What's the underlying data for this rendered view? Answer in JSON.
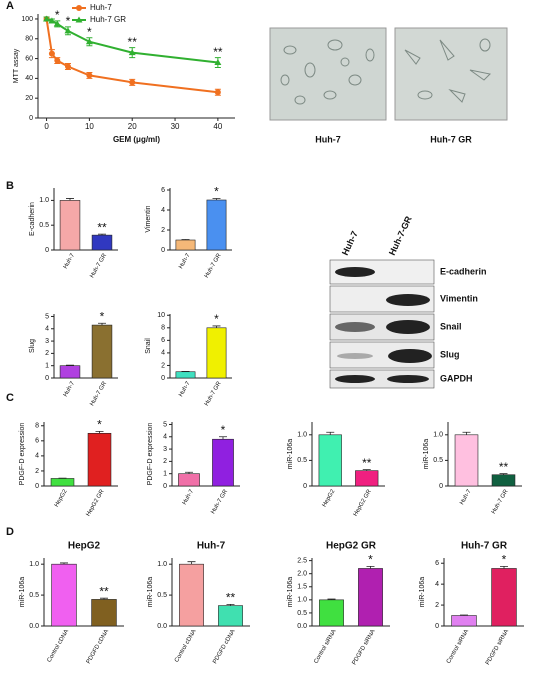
{
  "panel_labels": [
    "A",
    "B",
    "C",
    "D"
  ],
  "images": {
    "labels": [
      "Huh-7",
      "Huh-7 GR"
    ]
  },
  "blot": {
    "lanes": [
      "Huh-7",
      "Huh-7-GR"
    ],
    "rows": [
      "E-cadherin",
      "Vimentin",
      "Snail",
      "Slug",
      "GAPDH"
    ]
  },
  "chart_data": [
    {
      "type": "line",
      "xlabel": "GEM (μg/ml)",
      "ylabel": "MTT assay",
      "legend": "upper left",
      "x": [
        0,
        1.25,
        2.5,
        5,
        10,
        20,
        40
      ],
      "xlim": [
        -2,
        44
      ],
      "xticks": [
        0,
        10,
        20,
        30,
        40
      ],
      "ylim": [
        0,
        105
      ],
      "yticks": [
        0,
        20,
        40,
        60,
        80,
        100
      ],
      "series": [
        {
          "name": "Huh-7",
          "color": "#f07020",
          "values": [
            100,
            65,
            58,
            52,
            43,
            36,
            26
          ],
          "errors": [
            2,
            4,
            3,
            3,
            3,
            3,
            3
          ]
        },
        {
          "name": "Huh-7 GR",
          "color": "#30b030",
          "values": [
            100,
            98,
            95,
            88,
            77,
            66,
            56
          ],
          "errors": [
            2,
            2,
            3,
            4,
            4,
            5,
            5
          ]
        }
      ],
      "annotations": [
        null,
        null,
        "*",
        "*",
        "*",
        "**",
        "**"
      ]
    },
    {
      "type": "bar",
      "ylabel": "E-cadherin",
      "categories": [
        "Huh-7",
        "Huh-7 GR"
      ],
      "values": [
        1.0,
        0.3
      ],
      "errors": [
        0.04,
        0.02
      ],
      "colors": [
        "#f5a8a8",
        "#3038c0"
      ],
      "ylim": [
        0,
        1.25
      ],
      "yticks": [
        0,
        {
          "value": 0.5,
          "label": "0.5"
        },
        {
          "value": 1,
          "label": "1.0"
        }
      ],
      "value_annotations": [
        null,
        "**"
      ]
    },
    {
      "type": "bar",
      "ylabel": "Vimentin",
      "categories": [
        "Huh-7",
        "Huh-7 GR"
      ],
      "values": [
        1,
        5
      ],
      "errors": [
        0.05,
        0.15
      ],
      "colors": [
        "#f5b878",
        "#4a90f0"
      ],
      "ylim": [
        0,
        6.2
      ],
      "yticks": [
        0,
        2,
        4,
        6
      ],
      "value_annotations": [
        null,
        "*"
      ]
    },
    {
      "type": "bar",
      "ylabel": "Slug",
      "categories": [
        "Huh-7",
        "Huh-7 GR"
      ],
      "values": [
        1,
        4.3
      ],
      "errors": [
        0.04,
        0.15
      ],
      "colors": [
        "#b040e0",
        "#8a7030"
      ],
      "ylim": [
        0,
        5.2
      ],
      "yticks": [
        0,
        1,
        2,
        3,
        4,
        5
      ],
      "value_annotations": [
        null,
        "*"
      ]
    },
    {
      "type": "bar",
      "ylabel": "Snail",
      "categories": [
        "Huh-7",
        "Huh-7 GR"
      ],
      "values": [
        1,
        8
      ],
      "errors": [
        0.05,
        0.3
      ],
      "colors": [
        "#40e0c0",
        "#f0f000"
      ],
      "ylim": [
        0,
        10.2
      ],
      "yticks": [
        0,
        2,
        4,
        6,
        8,
        10
      ],
      "value_annotations": [
        null,
        "*"
      ]
    },
    {
      "type": "bar",
      "ylabel": "PDGF-D expression",
      "categories": [
        "HepG2",
        "HepG2 GR"
      ],
      "values": [
        1,
        7
      ],
      "errors": [
        0.05,
        0.25
      ],
      "colors": [
        "#40e040",
        "#e02020"
      ],
      "ylim": [
        0,
        8.5
      ],
      "yticks": [
        0,
        2,
        4,
        6,
        8
      ],
      "value_annotations": [
        null,
        "*"
      ]
    },
    {
      "type": "bar",
      "ylabel": "PDGF-D expression",
      "categories": [
        "Huh-7",
        "Huh-7 GR"
      ],
      "values": [
        1,
        3.8
      ],
      "errors": [
        0.12,
        0.2
      ],
      "colors": [
        "#f070a8",
        "#9020e0"
      ],
      "ylim": [
        0,
        5.2
      ],
      "yticks": [
        0,
        1,
        2,
        3,
        4,
        5
      ],
      "value_annotations": [
        null,
        "*"
      ]
    },
    {
      "type": "bar",
      "ylabel": "miR-106a",
      "categories": [
        "HepG2",
        "HepG2 GR"
      ],
      "values": [
        1,
        0.3
      ],
      "errors": [
        0.05,
        0.02
      ],
      "colors": [
        "#40f0b0",
        "#f02080"
      ],
      "ylim": [
        0,
        1.25
      ],
      "yticks": [
        0,
        {
          "value": 0.5,
          "label": "0.5"
        },
        {
          "value": 1,
          "label": "1.0"
        }
      ],
      "value_annotations": [
        null,
        "**"
      ]
    },
    {
      "type": "bar",
      "ylabel": "miR-106a",
      "categories": [
        "Huh-7",
        "Huh-7 GR"
      ],
      "values": [
        1,
        0.22
      ],
      "errors": [
        0.05,
        0.02
      ],
      "colors": [
        "#ffc0e0",
        "#106040"
      ],
      "ylim": [
        0,
        1.25
      ],
      "yticks": [
        0,
        {
          "value": 0.5,
          "label": "0.5"
        },
        {
          "value": 1,
          "label": "1.0"
        }
      ],
      "value_annotations": [
        null,
        "**"
      ]
    },
    {
      "type": "bar",
      "title": "HepG2",
      "ylabel": "miR-106a",
      "categories": [
        "Control cDNA",
        "PDGFD cDNA"
      ],
      "values": [
        1,
        0.43
      ],
      "errors": [
        0.02,
        0.02
      ],
      "colors": [
        "#f060f0",
        "#806020"
      ],
      "ylim": [
        0,
        1.1
      ],
      "yticks": [
        {
          "value": 0,
          "label": "0.0"
        },
        {
          "value": 0.5,
          "label": "0.5"
        },
        {
          "value": 1,
          "label": "1.0"
        }
      ],
      "value_annotations": [
        null,
        "**"
      ]
    },
    {
      "type": "bar",
      "title": "Huh-7",
      "ylabel": "miR-106a",
      "categories": [
        "Control cDNA",
        "PDGFD cDNA"
      ],
      "values": [
        1,
        0.33
      ],
      "errors": [
        0.04,
        0.02
      ],
      "colors": [
        "#f5a0a0",
        "#40e0b0"
      ],
      "ylim": [
        0,
        1.1
      ],
      "yticks": [
        {
          "value": 0,
          "label": "0.0"
        },
        {
          "value": 0.5,
          "label": "0.5"
        },
        {
          "value": 1,
          "label": "1.0"
        }
      ],
      "value_annotations": [
        null,
        "**"
      ]
    },
    {
      "type": "bar",
      "title": "HepG2 GR",
      "ylabel": "miR-106a",
      "categories": [
        "Control siRNA",
        "PDGFD siRNA"
      ],
      "values": [
        1,
        2.2
      ],
      "errors": [
        0.03,
        0.08
      ],
      "colors": [
        "#40e040",
        "#b020b0"
      ],
      "ylim": [
        0,
        2.6
      ],
      "yticks": [
        {
          "value": 0,
          "label": "0.0"
        },
        {
          "value": 0.5,
          "label": "0.5"
        },
        {
          "value": 1,
          "label": "1.0"
        },
        {
          "value": 1.5,
          "label": "1.5"
        },
        {
          "value": 2,
          "label": "2.0"
        },
        {
          "value": 2.5,
          "label": "2.5"
        }
      ],
      "value_annotations": [
        null,
        "*"
      ]
    },
    {
      "type": "bar",
      "title": "Huh-7 GR",
      "ylabel": "miR-106a",
      "categories": [
        "Control siRNA",
        "PDGFD siRNA"
      ],
      "values": [
        1,
        5.5
      ],
      "errors": [
        0.05,
        0.2
      ],
      "colors": [
        "#e080f0",
        "#e02060"
      ],
      "ylim": [
        0,
        6.5
      ],
      "yticks": [
        0,
        2,
        4,
        6
      ],
      "value_annotations": [
        null,
        "*"
      ]
    }
  ]
}
